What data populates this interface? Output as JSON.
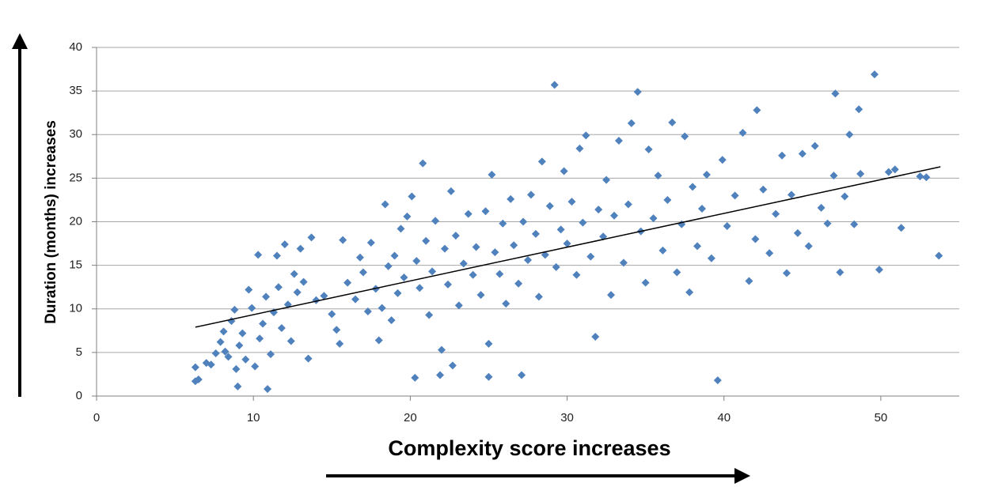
{
  "chart_data": {
    "type": "scatter",
    "x_label": "Complexity score increases",
    "y_label": "Duration (months) increases",
    "color": "#4f81bd",
    "xlim": [
      0,
      55
    ],
    "xticks": [
      0,
      10,
      20,
      30,
      40,
      50
    ],
    "ylim": [
      0,
      40
    ],
    "yticks": [
      0,
      5,
      10,
      15,
      20,
      25,
      30,
      35,
      40
    ],
    "grid": true,
    "x": [
      6.3,
      6.3,
      6.5,
      7.0,
      7.3,
      7.6,
      7.9,
      8.1,
      8.2,
      8.4,
      8.6,
      8.8,
      8.9,
      9.0,
      9.1,
      9.3,
      9.5,
      9.7,
      9.9,
      10.1,
      10.3,
      10.4,
      10.6,
      10.8,
      10.9,
      11.1,
      11.3,
      11.5,
      11.6,
      11.8,
      12.0,
      12.2,
      12.4,
      12.6,
      12.8,
      13.0,
      13.2,
      13.5,
      13.7,
      14.0,
      14.5,
      15.0,
      15.3,
      15.5,
      15.7,
      16.0,
      16.5,
      16.8,
      17.0,
      17.3,
      17.5,
      17.8,
      18.0,
      18.2,
      18.4,
      18.6,
      18.8,
      19.0,
      19.2,
      19.4,
      19.6,
      19.8,
      20.1,
      20.3,
      20.4,
      20.6,
      20.8,
      21.0,
      21.2,
      21.4,
      21.6,
      21.9,
      22.0,
      22.2,
      22.4,
      22.6,
      22.7,
      22.9,
      23.1,
      23.4,
      23.7,
      24.0,
      24.2,
      24.5,
      24.8,
      25.0,
      25.0,
      25.2,
      25.4,
      25.7,
      25.9,
      26.1,
      26.4,
      26.6,
      26.9,
      27.1,
      27.2,
      27.5,
      27.7,
      28.0,
      28.2,
      28.4,
      28.6,
      28.9,
      29.2,
      29.3,
      29.6,
      29.8,
      30.0,
      30.3,
      30.6,
      30.8,
      31.0,
      31.2,
      31.5,
      31.8,
      32.0,
      32.3,
      32.5,
      32.8,
      33.0,
      33.3,
      33.6,
      33.9,
      34.1,
      34.5,
      34.7,
      35.0,
      35.2,
      35.5,
      35.8,
      36.1,
      36.4,
      36.7,
      37.0,
      37.3,
      37.5,
      37.8,
      38.0,
      38.3,
      38.6,
      38.9,
      39.2,
      39.6,
      39.9,
      40.2,
      40.7,
      41.2,
      41.6,
      42.0,
      42.1,
      42.5,
      42.9,
      43.3,
      43.7,
      44.0,
      44.3,
      44.7,
      45.0,
      45.4,
      45.8,
      46.2,
      46.6,
      47.0,
      47.1,
      47.4,
      47.7,
      48.0,
      48.3,
      48.6,
      48.7,
      49.6,
      49.9,
      50.5,
      50.9,
      51.3,
      52.5,
      52.9,
      53.7
    ],
    "values": [
      1.7,
      3.3,
      1.9,
      3.8,
      3.6,
      4.9,
      6.2,
      7.4,
      5.1,
      4.5,
      8.6,
      9.9,
      3.1,
      1.1,
      5.8,
      7.2,
      4.2,
      12.2,
      10.1,
      3.4,
      16.2,
      6.6,
      8.3,
      11.4,
      0.8,
      4.8,
      9.6,
      16.1,
      12.5,
      7.8,
      17.4,
      10.5,
      6.3,
      14.0,
      11.9,
      16.9,
      13.1,
      4.3,
      18.2,
      11.0,
      11.5,
      9.4,
      7.6,
      6.0,
      17.9,
      13.0,
      11.1,
      15.9,
      14.2,
      9.7,
      17.6,
      12.3,
      6.4,
      10.1,
      22.0,
      14.9,
      8.7,
      16.1,
      11.8,
      19.2,
      13.6,
      20.6,
      22.9,
      2.1,
      15.5,
      12.4,
      26.7,
      17.8,
      9.3,
      14.3,
      20.1,
      2.4,
      5.3,
      16.9,
      12.8,
      23.5,
      3.5,
      18.4,
      10.4,
      15.2,
      20.9,
      13.9,
      17.1,
      11.6,
      21.2,
      2.2,
      6.0,
      25.4,
      16.5,
      14.0,
      19.8,
      10.6,
      22.6,
      17.3,
      12.9,
      2.4,
      20.0,
      15.6,
      23.1,
      18.6,
      11.4,
      26.9,
      16.2,
      21.8,
      35.7,
      14.8,
      19.1,
      25.8,
      17.5,
      22.3,
      13.9,
      28.4,
      19.9,
      29.9,
      16.0,
      6.8,
      21.4,
      18.3,
      24.8,
      11.6,
      20.7,
      29.3,
      15.3,
      22.0,
      31.3,
      34.9,
      18.9,
      13.0,
      28.3,
      20.4,
      25.3,
      16.7,
      22.5,
      31.4,
      14.2,
      19.7,
      29.8,
      11.9,
      24.0,
      17.2,
      21.5,
      25.4,
      15.8,
      1.8,
      27.1,
      19.5,
      23.0,
      30.2,
      13.2,
      18.0,
      32.8,
      23.7,
      16.4,
      20.9,
      27.6,
      14.1,
      23.1,
      18.7,
      27.8,
      17.2,
      28.7,
      21.6,
      19.8,
      25.3,
      34.7,
      14.2,
      22.9,
      30.0,
      19.7,
      32.9,
      25.5,
      36.9,
      14.5,
      25.7,
      26.0,
      19.3,
      25.2,
      25.1,
      16.1
    ],
    "trendline": {
      "x": [
        6.3,
        53.8
      ],
      "y": [
        7.9,
        26.3
      ],
      "color": "#000000"
    }
  }
}
